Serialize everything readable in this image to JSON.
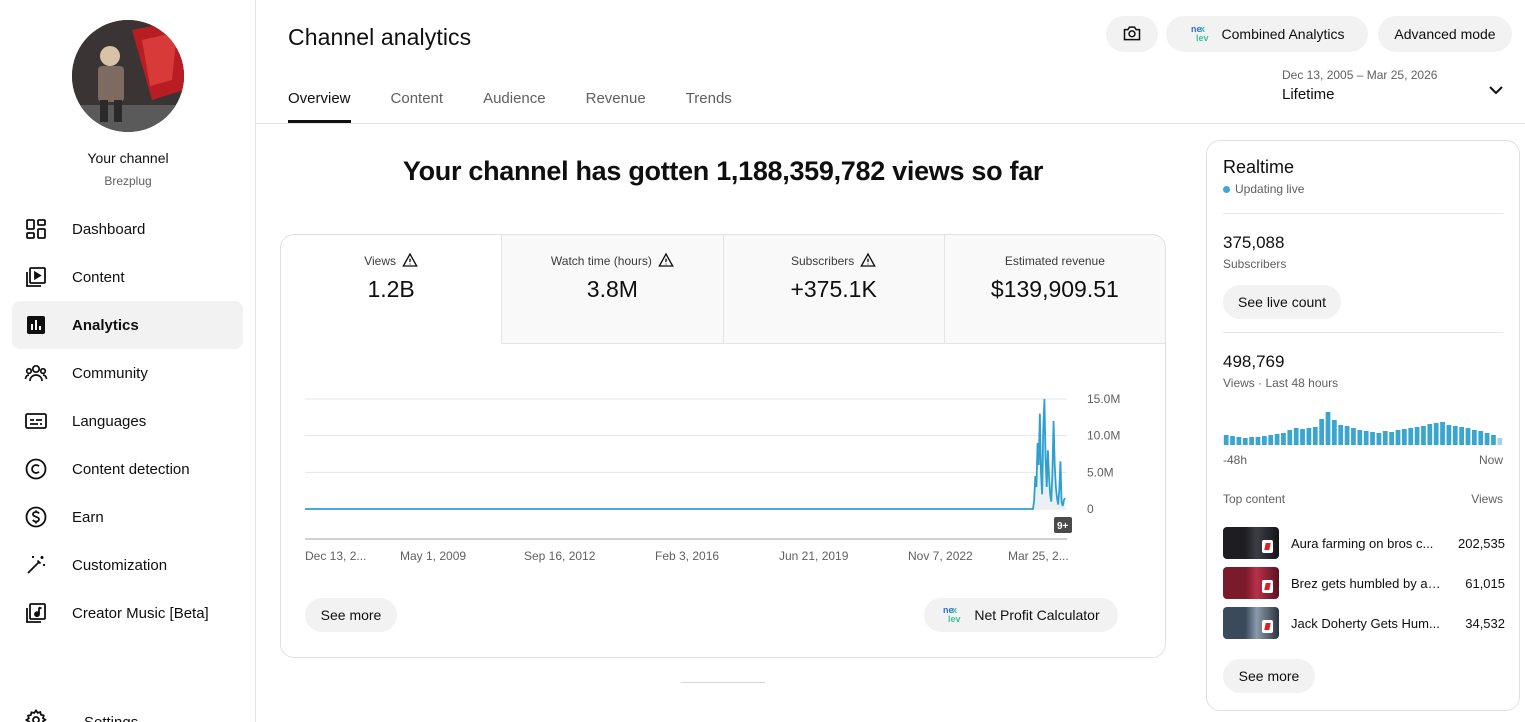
{
  "sidebar": {
    "your_channel": "Your channel",
    "handle": "Brezplug",
    "items": [
      {
        "label": "Dashboard",
        "icon": "dashboard-icon"
      },
      {
        "label": "Content",
        "icon": "content-icon"
      },
      {
        "label": "Analytics",
        "icon": "analytics-icon",
        "active": true
      },
      {
        "label": "Community",
        "icon": "community-icon"
      },
      {
        "label": "Languages",
        "icon": "languages-icon"
      },
      {
        "label": "Content detection",
        "icon": "content-detection-icon"
      },
      {
        "label": "Earn",
        "icon": "earn-icon"
      },
      {
        "label": "Customization",
        "icon": "customization-icon"
      },
      {
        "label": "Creator Music [Beta]",
        "icon": "creator-music-icon"
      }
    ],
    "settings_label": "Settings"
  },
  "header": {
    "title": "Channel analytics",
    "combined_label": "Combined Analytics",
    "advanced_label": "Advanced mode",
    "tabs": [
      "Overview",
      "Content",
      "Audience",
      "Revenue",
      "Trends"
    ],
    "active_tab": "Overview",
    "date_range": "Dec 13, 2005 – Mar 25, 2026",
    "date_label": "Lifetime"
  },
  "headline": "Your channel has gotten 1,188,359,782 views so far",
  "metrics": [
    {
      "label": "Views",
      "value": "1.2B",
      "warning": true,
      "active": true
    },
    {
      "label": "Watch time (hours)",
      "value": "3.8M",
      "warning": true
    },
    {
      "label": "Subscribers",
      "value": "+375.1K",
      "warning": true
    },
    {
      "label": "Estimated revenue",
      "value": "$139,909.51",
      "warning": false
    }
  ],
  "chart_data": {
    "type": "line",
    "series": [
      {
        "values_description_only": false
      }
    ],
    "x_tick_labels": [
      "Dec 13, 2...",
      "May 1, 2009",
      "Sep 16, 2012",
      "Feb 3, 2016",
      "Jun 21, 2019",
      "Nov 7, 2022",
      "Mar 25, 2..."
    ],
    "y_tick_labels": [
      "15.0M",
      "10.0M",
      "5.0M",
      "0"
    ],
    "ylim": [
      0,
      15000000
    ],
    "grid": true,
    "badge": "9+",
    "color": "#2f9fd0"
  },
  "main_buttons": {
    "see_more": "See more",
    "net_profit": "Net Profit Calculator"
  },
  "realtime": {
    "title": "Realtime",
    "live_label": "Updating live",
    "subscribers_value": "375,088",
    "subscribers_label": "Subscribers",
    "live_count_label": "See live count",
    "views_value": "498,769",
    "views_label": "Views · Last 48 hours",
    "axis_start": "-48h",
    "axis_end": "Now",
    "top_content_label": "Top content",
    "views_col_label": "Views",
    "top_content": [
      {
        "title": "Aura farming on bros c...",
        "views": "202,535"
      },
      {
        "title": "Brez gets humbled by a ...",
        "views": "61,015"
      },
      {
        "title": "Jack Doherty Gets Hum...",
        "views": "34,532"
      }
    ],
    "see_more_label": "See more"
  }
}
